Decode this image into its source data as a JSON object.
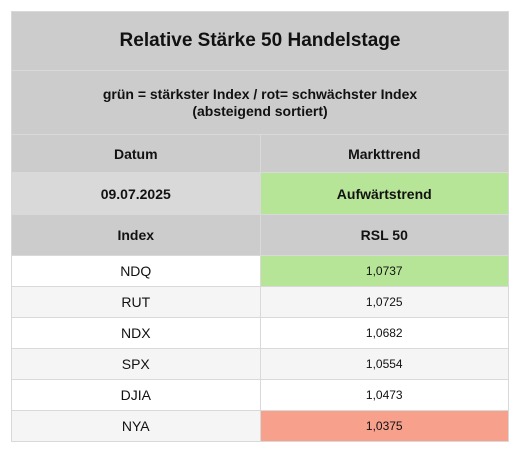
{
  "title": "Relative Stärke 50 Handelstage",
  "subtitle_line1": "grün = stärkster Index / rot= schwächster Index",
  "subtitle_line2": "(absteigend sortiert)",
  "header": {
    "date_label": "Datum",
    "trend_label": "Markttrend"
  },
  "date_row": {
    "date": "09.07.2025",
    "trend": "Aufwärtstrend",
    "trend_color": "#b7e597"
  },
  "columns": {
    "index": "Index",
    "value": "RSL 50"
  },
  "rows": [
    {
      "index": "NDQ",
      "value": "1,0737",
      "highlight": "green"
    },
    {
      "index": "RUT",
      "value": "1,0725",
      "highlight": ""
    },
    {
      "index": "NDX",
      "value": "1,0682",
      "highlight": ""
    },
    {
      "index": "SPX",
      "value": "1,0554",
      "highlight": ""
    },
    {
      "index": "DJIA",
      "value": "1,0473",
      "highlight": ""
    },
    {
      "index": "NYA",
      "value": "1,0375",
      "highlight": "red"
    }
  ],
  "colors": {
    "header_gray": "#cccccc",
    "strongest_green": "#b7e597",
    "weakest_red": "#f7a08c"
  }
}
